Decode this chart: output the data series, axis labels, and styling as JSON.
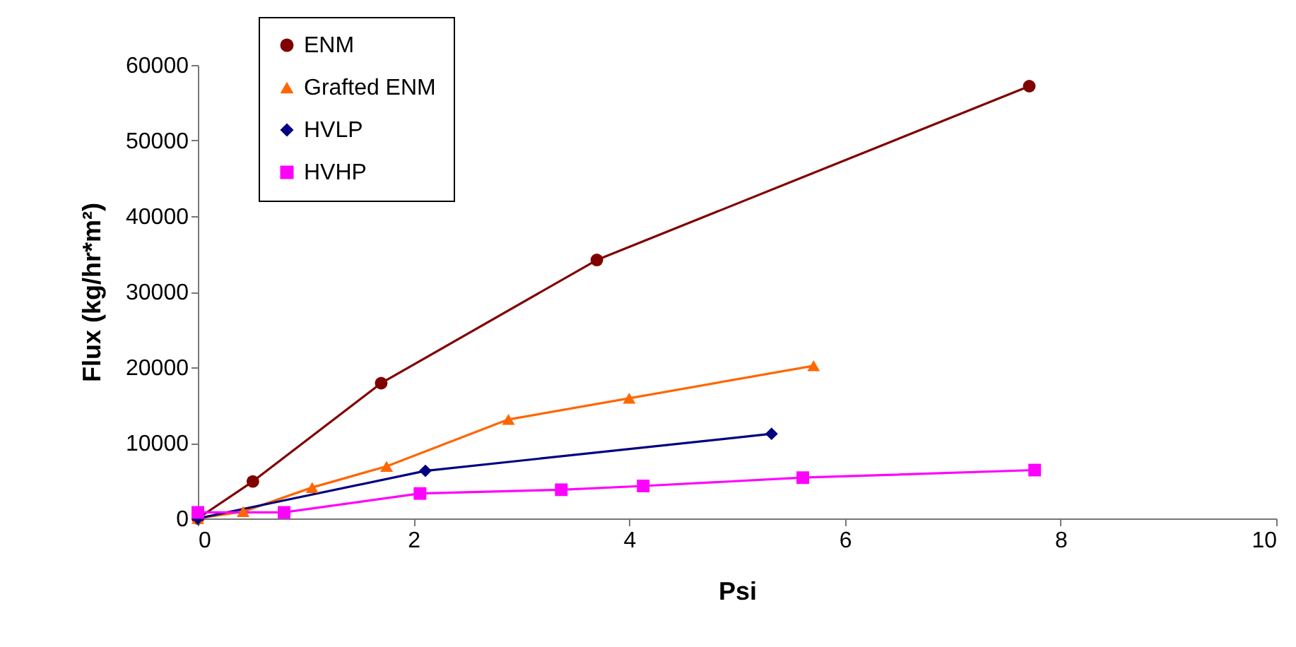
{
  "chart_data": {
    "type": "line",
    "xlabel": "Psi",
    "ylabel": "Flux (kg/hr*m²)",
    "xlim": [
      0,
      10
    ],
    "xticks": [
      0,
      2,
      4,
      6,
      8,
      10
    ],
    "ylim": [
      0,
      60000
    ],
    "yticks": [
      0,
      10000,
      20000,
      30000,
      40000,
      50000,
      60000
    ],
    "legend": "top left",
    "grid": false,
    "line_style": "solid",
    "series": [
      {
        "name": "ENM",
        "color": "#800000",
        "marker": "circle",
        "x": [
          0,
          0.51,
          1.7,
          3.7,
          7.71
        ],
        "values": [
          0,
          4900,
          17900,
          34200,
          57200
        ]
      },
      {
        "name": "Grafted ENM",
        "color": "#ff6600",
        "marker": "triangle",
        "x": [
          0,
          0.42,
          1.06,
          1.75,
          2.88,
          4.0,
          5.71
        ],
        "values": [
          0,
          900,
          4100,
          6900,
          13100,
          15900,
          20200
        ]
      },
      {
        "name": "HVLP",
        "color": "#000080",
        "marker": "diamond",
        "x": [
          0,
          2.11,
          5.32
        ],
        "values": [
          0,
          6300,
          11200
        ]
      },
      {
        "name": "HVHP",
        "color": "#ff00ff",
        "marker": "square",
        "x": [
          0,
          0.8,
          2.06,
          3.37,
          4.13,
          5.61,
          7.76
        ],
        "values": [
          800,
          800,
          3300,
          3800,
          4300,
          5400,
          6400
        ]
      }
    ]
  }
}
